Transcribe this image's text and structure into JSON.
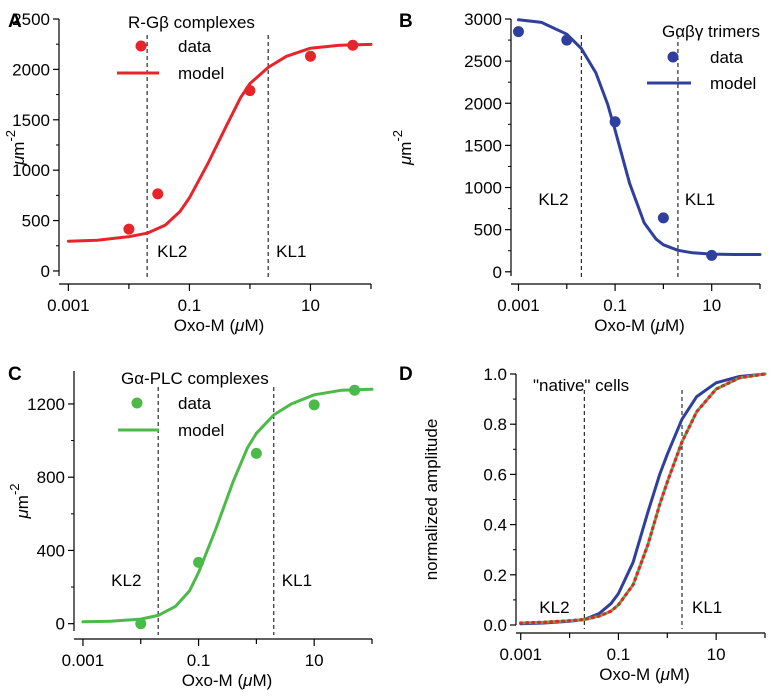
{
  "chart_data": [
    {
      "panel": "A",
      "type": "line",
      "title": "R-Gβ complexes",
      "xlabel": "Oxo-M (μM)",
      "ylabel": "μm-2",
      "xscale": "log",
      "xlim": [
        0.0007,
        100
      ],
      "ylim": [
        -50,
        2500
      ],
      "xticks": [
        0.001,
        0.1,
        10
      ],
      "xtick_labels": [
        "0.001",
        "0.1",
        "10"
      ],
      "yticks": [
        0,
        500,
        1000,
        1500,
        2000,
        2500
      ],
      "ytick_labels": [
        "0",
        "500",
        "1000",
        "1500",
        "2000",
        "2500"
      ],
      "legend_position": "top-left",
      "color": "#e8242b",
      "series": [
        {
          "name": "data",
          "kind": "scatter",
          "x": [
            0.01,
            0.03,
            1,
            10,
            50
          ],
          "y": [
            415,
            765,
            1790,
            2130,
            2240
          ]
        },
        {
          "name": "model",
          "kind": "line",
          "x": [
            0.001,
            0.003,
            0.01,
            0.02,
            0.04,
            0.07,
            0.1,
            0.2,
            0.4,
            0.7,
            1,
            2,
            4,
            10,
            30,
            100
          ],
          "y": [
            295,
            305,
            340,
            375,
            455,
            590,
            725,
            1060,
            1430,
            1720,
            1860,
            2020,
            2130,
            2210,
            2240,
            2248
          ]
        }
      ],
      "annotations": [
        {
          "text": "KL2",
          "x": 0.02,
          "kind": "dashed-vline"
        },
        {
          "text": "KL1",
          "x": 2,
          "kind": "dashed-vline"
        }
      ]
    },
    {
      "panel": "B",
      "type": "line",
      "title": "Gαβγ trimers",
      "xlabel": "Oxo-M (μM)",
      "ylabel": "μm-2",
      "xscale": "log",
      "xlim": [
        0.0007,
        100
      ],
      "ylim": [
        -50,
        3000
      ],
      "xticks": [
        0.001,
        0.1,
        10
      ],
      "xtick_labels": [
        "0.001",
        "0.1",
        "10"
      ],
      "yticks": [
        0,
        500,
        1000,
        1500,
        2000,
        2500,
        3000
      ],
      "ytick_labels": [
        "0",
        "500",
        "1000",
        "1500",
        "2000",
        "2500",
        "3000"
      ],
      "legend_position": "top-right",
      "color": "#2e3f9e",
      "series": [
        {
          "name": "data",
          "kind": "scatter",
          "x": [
            0.001,
            0.01,
            0.1,
            1,
            10
          ],
          "y": [
            2850,
            2750,
            1780,
            640,
            195
          ]
        },
        {
          "name": "model",
          "kind": "line",
          "x": [
            0.001,
            0.003,
            0.01,
            0.02,
            0.04,
            0.07,
            0.1,
            0.2,
            0.4,
            0.7,
            1,
            2,
            4,
            10,
            30,
            100
          ],
          "y": [
            2990,
            2960,
            2820,
            2650,
            2360,
            1990,
            1680,
            1050,
            580,
            390,
            320,
            255,
            225,
            210,
            205,
            205
          ]
        }
      ],
      "annotations": [
        {
          "text": "KL2",
          "x": 0.02,
          "kind": "dashed-vline"
        },
        {
          "text": "KL1",
          "x": 2,
          "kind": "dashed-vline"
        }
      ]
    },
    {
      "panel": "C",
      "type": "line",
      "title": "Gα-PLC complexes",
      "xlabel": "Oxo-M (μM)",
      "ylabel": "μm-2",
      "xscale": "log",
      "xlim": [
        0.0007,
        100
      ],
      "ylim": [
        -40,
        1380
      ],
      "xticks": [
        0.001,
        0.1,
        10
      ],
      "xtick_labels": [
        "0.001",
        "0.1",
        "10"
      ],
      "yticks": [
        0,
        400,
        800,
        1200
      ],
      "ytick_labels": [
        "0",
        "400",
        "800",
        "1200"
      ],
      "legend_position": "top-left",
      "color": "#4cba48",
      "series": [
        {
          "name": "data",
          "kind": "scatter",
          "x": [
            0.01,
            0.1,
            1,
            10,
            50
          ],
          "y": [
            0,
            335,
            930,
            1195,
            1275
          ]
        },
        {
          "name": "model",
          "kind": "line",
          "x": [
            0.001,
            0.003,
            0.01,
            0.02,
            0.04,
            0.07,
            0.1,
            0.2,
            0.4,
            0.7,
            1,
            2,
            4,
            10,
            30,
            100
          ],
          "y": [
            10,
            13,
            25,
            45,
            95,
            180,
            280,
            520,
            780,
            960,
            1040,
            1140,
            1200,
            1250,
            1275,
            1280
          ]
        }
      ],
      "annotations": [
        {
          "text": "KL2",
          "x": 0.02,
          "kind": "dashed-vline"
        },
        {
          "text": "KL1",
          "x": 2,
          "kind": "dashed-vline"
        }
      ]
    },
    {
      "panel": "D",
      "type": "line",
      "title": "\"native\" cells",
      "xlabel": "Oxo-M (μM)",
      "ylabel": "normalized amplitude",
      "xscale": "log",
      "xlim": [
        0.0008,
        100
      ],
      "ylim": [
        0,
        1
      ],
      "xticks": [
        0.001,
        0.1,
        10
      ],
      "xtick_labels": [
        "0.001",
        "0.1",
        "10"
      ],
      "yticks": [
        0,
        0.2,
        0.4,
        0.6,
        0.8,
        1.0
      ],
      "ytick_labels": [
        "0.0",
        "0.2",
        "0.4",
        "0.6",
        "0.8",
        "1.0"
      ],
      "series": [
        {
          "kind": "line",
          "color": "#2e3f9e",
          "x": [
            0.001,
            0.003,
            0.01,
            0.02,
            0.04,
            0.07,
            0.1,
            0.2,
            0.4,
            0.7,
            1,
            2,
            4,
            10,
            30,
            100
          ],
          "y": [
            0.005,
            0.008,
            0.015,
            0.022,
            0.045,
            0.085,
            0.125,
            0.25,
            0.45,
            0.6,
            0.68,
            0.82,
            0.91,
            0.965,
            0.99,
            1.0
          ]
        },
        {
          "kind": "line",
          "color": "#4cba48",
          "x": [
            0.001,
            0.003,
            0.01,
            0.02,
            0.04,
            0.07,
            0.1,
            0.2,
            0.4,
            0.7,
            1,
            2,
            4,
            10,
            30,
            100
          ],
          "y": [
            0.008,
            0.011,
            0.017,
            0.022,
            0.035,
            0.055,
            0.08,
            0.16,
            0.32,
            0.48,
            0.57,
            0.73,
            0.85,
            0.94,
            0.985,
            1.0
          ]
        },
        {
          "kind": "line",
          "style": "dotted",
          "color": "#e8242b",
          "x": [
            0.001,
            0.003,
            0.01,
            0.02,
            0.04,
            0.07,
            0.1,
            0.2,
            0.4,
            0.7,
            1,
            2,
            4,
            10,
            30,
            100
          ],
          "y": [
            0.008,
            0.011,
            0.017,
            0.022,
            0.035,
            0.055,
            0.08,
            0.16,
            0.32,
            0.48,
            0.57,
            0.73,
            0.85,
            0.94,
            0.985,
            1.0
          ]
        }
      ],
      "annotations": [
        {
          "text": "KL2",
          "x": 0.02,
          "kind": "dashed-vline"
        },
        {
          "text": "KL1",
          "x": 2,
          "kind": "dashed-vline"
        }
      ]
    }
  ]
}
